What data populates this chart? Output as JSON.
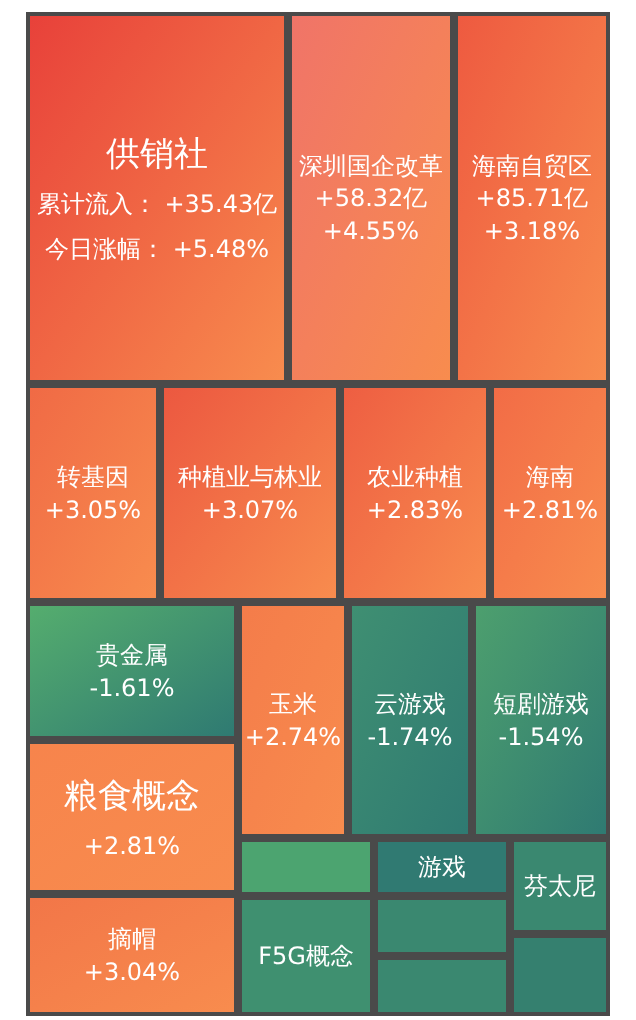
{
  "chart_data": {
    "type": "other",
    "categories": [
      "供销社",
      "深圳国企改革",
      "海南自贸区",
      "转基因",
      "种植业与林业",
      "农业种植",
      "海南",
      "贵金属",
      "粮食概念",
      "摘帽",
      "玉米",
      "云游戏",
      "短剧游戏",
      null,
      "F5G概念",
      "游戏",
      null,
      null,
      "芬太尼",
      null
    ],
    "values": [
      5.48,
      4.55,
      3.18,
      3.05,
      3.07,
      2.83,
      2.81,
      -1.61,
      2.81,
      3.04,
      2.74,
      -1.74,
      -1.54,
      null,
      null,
      null,
      null,
      null,
      null,
      null
    ],
    "value_labels": [
      "今日涨幅：  +5.48%",
      "+4.55%",
      "+3.18%",
      "+3.05%",
      "+3.07%",
      "+2.83%",
      "+2.81%",
      "-1.61%",
      "+2.81%",
      "+3.04%",
      "+2.74%",
      "-1.74%",
      "-1.54%",
      null,
      null,
      null,
      null,
      null,
      null,
      null
    ],
    "colors": [
      "#e8413a",
      "#f07468",
      "#ee5a40",
      "#f06a45",
      "#ec5840",
      "#ee5e42",
      "#f26c46",
      "#55ad6e",
      "#f7844c",
      "#f27648",
      "#f47c4a",
      "#3f8f72",
      "#4d9f6e",
      "#4ca470",
      "#3f9070",
      "#307a72",
      "#3a8870",
      "#3a8870",
      "#3a8870",
      "#35806f"
    ],
    "annotations": [
      {
        "text": "累计流入：  +35.43亿",
        "x": "供销社"
      },
      {
        "text": "+58.32亿",
        "x": "深圳国企改革"
      },
      {
        "text": "+85.71亿",
        "x": "海南自贸区"
      }
    ]
  }
}
